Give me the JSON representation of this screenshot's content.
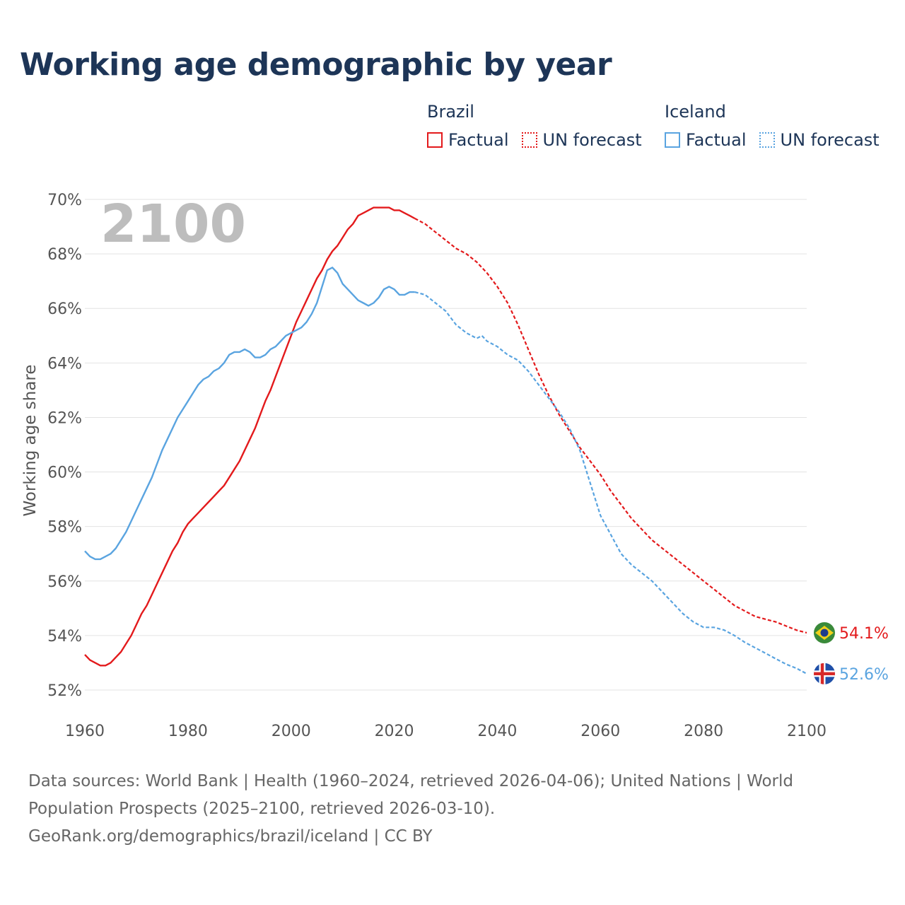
{
  "title": "Working age demographic by year",
  "legend": {
    "groups": [
      {
        "name": "Brazil",
        "factual_label": "Factual",
        "forecast_label": "UN forecast",
        "color": "#e31a1c"
      },
      {
        "name": "Iceland",
        "factual_label": "Factual",
        "forecast_label": "UN forecast",
        "color": "#5aa4e0"
      }
    ]
  },
  "year_overlay": "2100",
  "sources": {
    "line1": "Data sources: World Bank | Health (1960–2024, retrieved 2026-04-06); United Nations | World",
    "line2": "Population Prospects (2025–2100, retrieved 2026-03-10).",
    "line3": "GeoRank.org/demographics/brazil/iceland | CC BY"
  },
  "colors": {
    "brazil": "#e31a1c",
    "iceland": "#5aa4e0",
    "title": "#1d3557",
    "axis_text": "#555555",
    "grid": "#e3e3e3",
    "overlay": "#bdbdbd",
    "flag_brazil_green": "#3a8a3a",
    "flag_brazil_yellow": "#f2d11a",
    "flag_brazil_blue": "#1f3d8c",
    "flag_iceland_blue": "#1f4fa8",
    "flag_iceland_red": "#d72828"
  },
  "chart_data": {
    "type": "line",
    "title": "Working age demographic by year",
    "xlabel": "",
    "ylabel": "Working age share",
    "xlim": [
      1960,
      2100
    ],
    "ylim": [
      52,
      70
    ],
    "x_ticks": [
      1960,
      1980,
      2000,
      2020,
      2040,
      2060,
      2080,
      2100
    ],
    "y_ticks": [
      52,
      54,
      56,
      58,
      60,
      62,
      64,
      66,
      68,
      70
    ],
    "y_tick_suffix": "%",
    "grid": true,
    "factual_range": [
      1960,
      2024
    ],
    "forecast_range": [
      2024,
      2100
    ],
    "series": [
      {
        "name": "Brazil",
        "flag": "brazil",
        "end_label": "54.1%",
        "points": [
          [
            1960,
            53.3
          ],
          [
            1961,
            53.1
          ],
          [
            1962,
            53.0
          ],
          [
            1963,
            52.9
          ],
          [
            1964,
            52.9
          ],
          [
            1965,
            53.0
          ],
          [
            1966,
            53.2
          ],
          [
            1967,
            53.4
          ],
          [
            1968,
            53.7
          ],
          [
            1969,
            54.0
          ],
          [
            1970,
            54.4
          ],
          [
            1971,
            54.8
          ],
          [
            1972,
            55.1
          ],
          [
            1973,
            55.5
          ],
          [
            1974,
            55.9
          ],
          [
            1975,
            56.3
          ],
          [
            1976,
            56.7
          ],
          [
            1977,
            57.1
          ],
          [
            1978,
            57.4
          ],
          [
            1979,
            57.8
          ],
          [
            1980,
            58.1
          ],
          [
            1981,
            58.3
          ],
          [
            1982,
            58.5
          ],
          [
            1983,
            58.7
          ],
          [
            1984,
            58.9
          ],
          [
            1985,
            59.1
          ],
          [
            1986,
            59.3
          ],
          [
            1987,
            59.5
          ],
          [
            1988,
            59.8
          ],
          [
            1989,
            60.1
          ],
          [
            1990,
            60.4
          ],
          [
            1991,
            60.8
          ],
          [
            1992,
            61.2
          ],
          [
            1993,
            61.6
          ],
          [
            1994,
            62.1
          ],
          [
            1995,
            62.6
          ],
          [
            1996,
            63.0
          ],
          [
            1997,
            63.5
          ],
          [
            1998,
            64.0
          ],
          [
            1999,
            64.5
          ],
          [
            2000,
            65.0
          ],
          [
            2001,
            65.5
          ],
          [
            2002,
            65.9
          ],
          [
            2003,
            66.3
          ],
          [
            2004,
            66.7
          ],
          [
            2005,
            67.1
          ],
          [
            2006,
            67.4
          ],
          [
            2007,
            67.8
          ],
          [
            2008,
            68.1
          ],
          [
            2009,
            68.3
          ],
          [
            2010,
            68.6
          ],
          [
            2011,
            68.9
          ],
          [
            2012,
            69.1
          ],
          [
            2013,
            69.4
          ],
          [
            2014,
            69.5
          ],
          [
            2015,
            69.6
          ],
          [
            2016,
            69.7
          ],
          [
            2017,
            69.7
          ],
          [
            2018,
            69.7
          ],
          [
            2019,
            69.7
          ],
          [
            2020,
            69.6
          ],
          [
            2021,
            69.6
          ],
          [
            2022,
            69.5
          ],
          [
            2023,
            69.4
          ],
          [
            2024,
            69.3
          ],
          [
            2026,
            69.1
          ],
          [
            2028,
            68.8
          ],
          [
            2030,
            68.5
          ],
          [
            2032,
            68.2
          ],
          [
            2034,
            68.0
          ],
          [
            2036,
            67.7
          ],
          [
            2038,
            67.3
          ],
          [
            2040,
            66.8
          ],
          [
            2042,
            66.2
          ],
          [
            2044,
            65.4
          ],
          [
            2046,
            64.5
          ],
          [
            2048,
            63.6
          ],
          [
            2050,
            62.8
          ],
          [
            2052,
            62.1
          ],
          [
            2054,
            61.5
          ],
          [
            2056,
            60.9
          ],
          [
            2058,
            60.4
          ],
          [
            2060,
            59.9
          ],
          [
            2062,
            59.3
          ],
          [
            2064,
            58.8
          ],
          [
            2066,
            58.3
          ],
          [
            2068,
            57.9
          ],
          [
            2070,
            57.5
          ],
          [
            2072,
            57.2
          ],
          [
            2074,
            56.9
          ],
          [
            2076,
            56.6
          ],
          [
            2078,
            56.3
          ],
          [
            2080,
            56.0
          ],
          [
            2082,
            55.7
          ],
          [
            2084,
            55.4
          ],
          [
            2086,
            55.1
          ],
          [
            2088,
            54.9
          ],
          [
            2090,
            54.7
          ],
          [
            2092,
            54.6
          ],
          [
            2094,
            54.5
          ],
          [
            2096,
            54.35
          ],
          [
            2098,
            54.2
          ],
          [
            2100,
            54.1
          ]
        ]
      },
      {
        "name": "Iceland",
        "flag": "iceland",
        "end_label": "52.6%",
        "points": [
          [
            1960,
            57.1
          ],
          [
            1961,
            56.9
          ],
          [
            1962,
            56.8
          ],
          [
            1963,
            56.8
          ],
          [
            1964,
            56.9
          ],
          [
            1965,
            57.0
          ],
          [
            1966,
            57.2
          ],
          [
            1967,
            57.5
          ],
          [
            1968,
            57.8
          ],
          [
            1969,
            58.2
          ],
          [
            1970,
            58.6
          ],
          [
            1971,
            59.0
          ],
          [
            1972,
            59.4
          ],
          [
            1973,
            59.8
          ],
          [
            1974,
            60.3
          ],
          [
            1975,
            60.8
          ],
          [
            1976,
            61.2
          ],
          [
            1977,
            61.6
          ],
          [
            1978,
            62.0
          ],
          [
            1979,
            62.3
          ],
          [
            1980,
            62.6
          ],
          [
            1981,
            62.9
          ],
          [
            1982,
            63.2
          ],
          [
            1983,
            63.4
          ],
          [
            1984,
            63.5
          ],
          [
            1985,
            63.7
          ],
          [
            1986,
            63.8
          ],
          [
            1987,
            64.0
          ],
          [
            1988,
            64.3
          ],
          [
            1989,
            64.4
          ],
          [
            1990,
            64.4
          ],
          [
            1991,
            64.5
          ],
          [
            1992,
            64.4
          ],
          [
            1993,
            64.2
          ],
          [
            1994,
            64.2
          ],
          [
            1995,
            64.3
          ],
          [
            1996,
            64.5
          ],
          [
            1997,
            64.6
          ],
          [
            1998,
            64.8
          ],
          [
            1999,
            65.0
          ],
          [
            2000,
            65.1
          ],
          [
            2001,
            65.2
          ],
          [
            2002,
            65.3
          ],
          [
            2003,
            65.5
          ],
          [
            2004,
            65.8
          ],
          [
            2005,
            66.2
          ],
          [
            2006,
            66.8
          ],
          [
            2007,
            67.4
          ],
          [
            2008,
            67.5
          ],
          [
            2009,
            67.3
          ],
          [
            2010,
            66.9
          ],
          [
            2011,
            66.7
          ],
          [
            2012,
            66.5
          ],
          [
            2013,
            66.3
          ],
          [
            2014,
            66.2
          ],
          [
            2015,
            66.1
          ],
          [
            2016,
            66.2
          ],
          [
            2017,
            66.4
          ],
          [
            2018,
            66.7
          ],
          [
            2019,
            66.8
          ],
          [
            2020,
            66.7
          ],
          [
            2021,
            66.5
          ],
          [
            2022,
            66.5
          ],
          [
            2023,
            66.6
          ],
          [
            2024,
            66.6
          ],
          [
            2026,
            66.5
          ],
          [
            2028,
            66.2
          ],
          [
            2030,
            65.9
          ],
          [
            2032,
            65.4
          ],
          [
            2034,
            65.1
          ],
          [
            2036,
            64.9
          ],
          [
            2037,
            65.0
          ],
          [
            2038,
            64.8
          ],
          [
            2040,
            64.6
          ],
          [
            2042,
            64.3
          ],
          [
            2044,
            64.1
          ],
          [
            2046,
            63.7
          ],
          [
            2048,
            63.2
          ],
          [
            2050,
            62.7
          ],
          [
            2052,
            62.2
          ],
          [
            2054,
            61.6
          ],
          [
            2056,
            60.8
          ],
          [
            2058,
            59.6
          ],
          [
            2060,
            58.4
          ],
          [
            2062,
            57.7
          ],
          [
            2064,
            57.0
          ],
          [
            2066,
            56.6
          ],
          [
            2068,
            56.3
          ],
          [
            2070,
            56.0
          ],
          [
            2072,
            55.6
          ],
          [
            2074,
            55.2
          ],
          [
            2076,
            54.8
          ],
          [
            2078,
            54.5
          ],
          [
            2080,
            54.3
          ],
          [
            2082,
            54.3
          ],
          [
            2084,
            54.2
          ],
          [
            2086,
            54.0
          ],
          [
            2088,
            53.75
          ],
          [
            2090,
            53.55
          ],
          [
            2092,
            53.35
          ],
          [
            2094,
            53.15
          ],
          [
            2096,
            52.95
          ],
          [
            2098,
            52.8
          ],
          [
            2100,
            52.6
          ]
        ]
      }
    ]
  }
}
